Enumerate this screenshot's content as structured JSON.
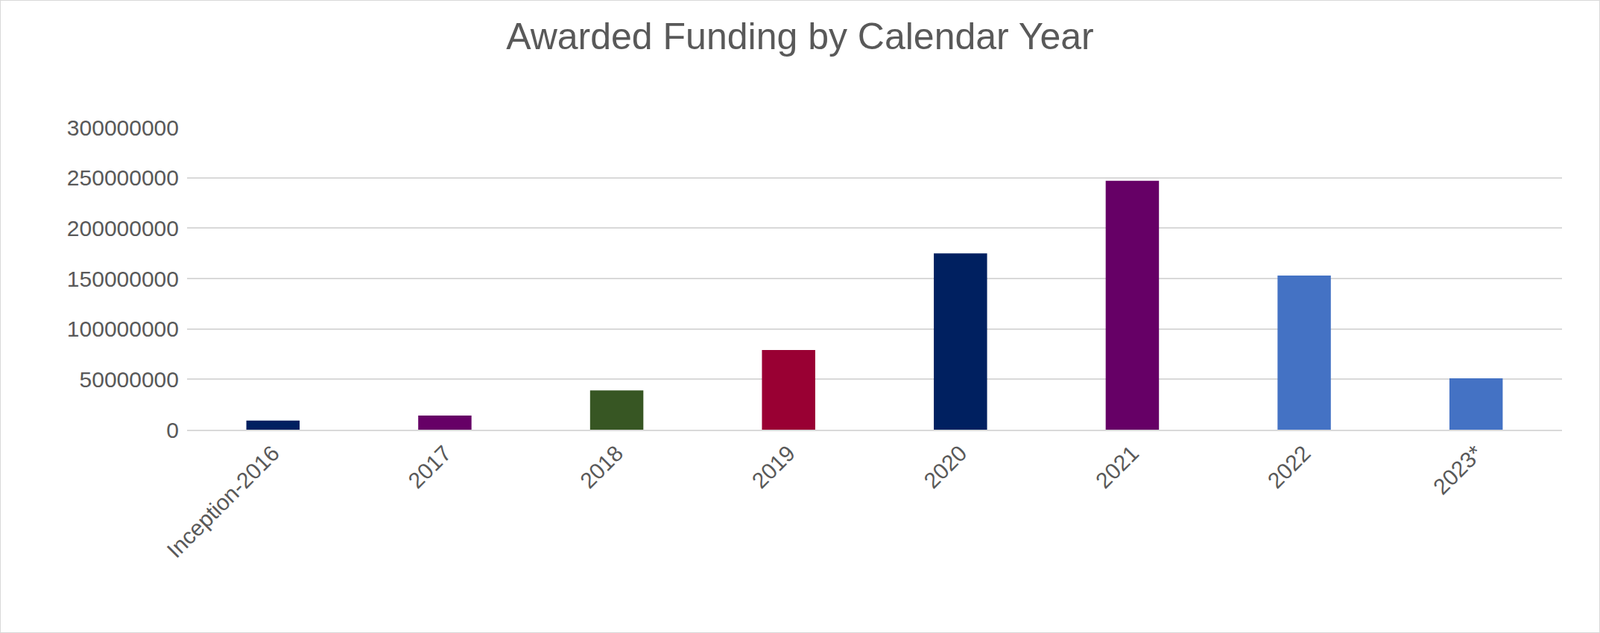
{
  "chart_data": {
    "type": "bar",
    "title": "Awarded Funding by Calendar Year",
    "categories": [
      "Inception-2016",
      "2017",
      "2018",
      "2019",
      "2020",
      "2021",
      "2022",
      "2023*"
    ],
    "values": [
      9000000,
      14000000,
      39000000,
      79000000,
      175000000,
      247000000,
      153000000,
      51000000
    ],
    "colors": [
      "#002060",
      "#660066",
      "#375623",
      "#990033",
      "#002060",
      "#660066",
      "#4472c4",
      "#4472c4"
    ],
    "ylim": [
      0,
      300000000
    ],
    "yticks": [
      0,
      50000000,
      100000000,
      150000000,
      200000000,
      250000000,
      300000000
    ],
    "grid": true
  }
}
